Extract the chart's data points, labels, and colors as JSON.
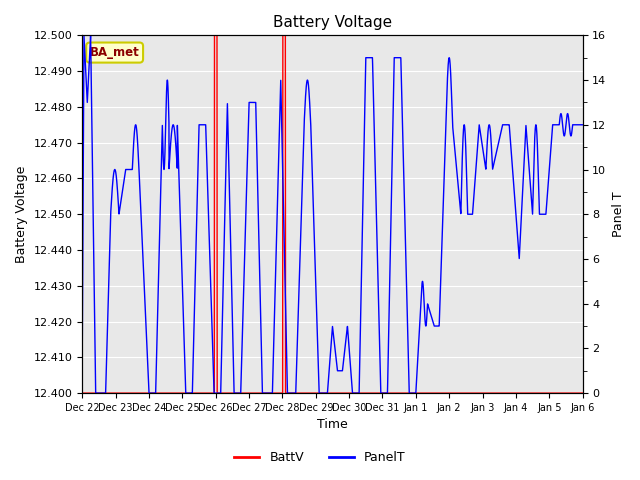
{
  "title": "Battery Voltage",
  "xlabel": "Time",
  "ylabel_left": "Battery Voltage",
  "ylabel_right": "Panel T",
  "ylim_left": [
    12.4,
    12.5
  ],
  "ylim_right": [
    0,
    16
  ],
  "yticks_left": [
    12.4,
    12.41,
    12.42,
    12.43,
    12.44,
    12.45,
    12.46,
    12.47,
    12.48,
    12.49,
    12.5
  ],
  "yticks_right_major": [
    0,
    2,
    4,
    6,
    8,
    10,
    12,
    14,
    16
  ],
  "yticks_right_minor": [
    1,
    3,
    5,
    7,
    9,
    11,
    13,
    15
  ],
  "xtick_labels": [
    "Dec 22",
    "Dec 23",
    "Dec 24",
    "Dec 25",
    "Dec 26",
    "Dec 27",
    "Dec 28",
    "Dec 29",
    "Dec 30",
    "Dec 31",
    "Jan 1",
    "Jan 2",
    "Jan 3",
    "Jan 4",
    "Jan 5",
    "Jan 6"
  ],
  "bg_color": "#e8e8e8",
  "line_color_batt": "red",
  "line_color_panel": "blue",
  "annotation_text": "BA_met",
  "annotation_bg": "#ffffcc",
  "annotation_border": "#cccc00"
}
